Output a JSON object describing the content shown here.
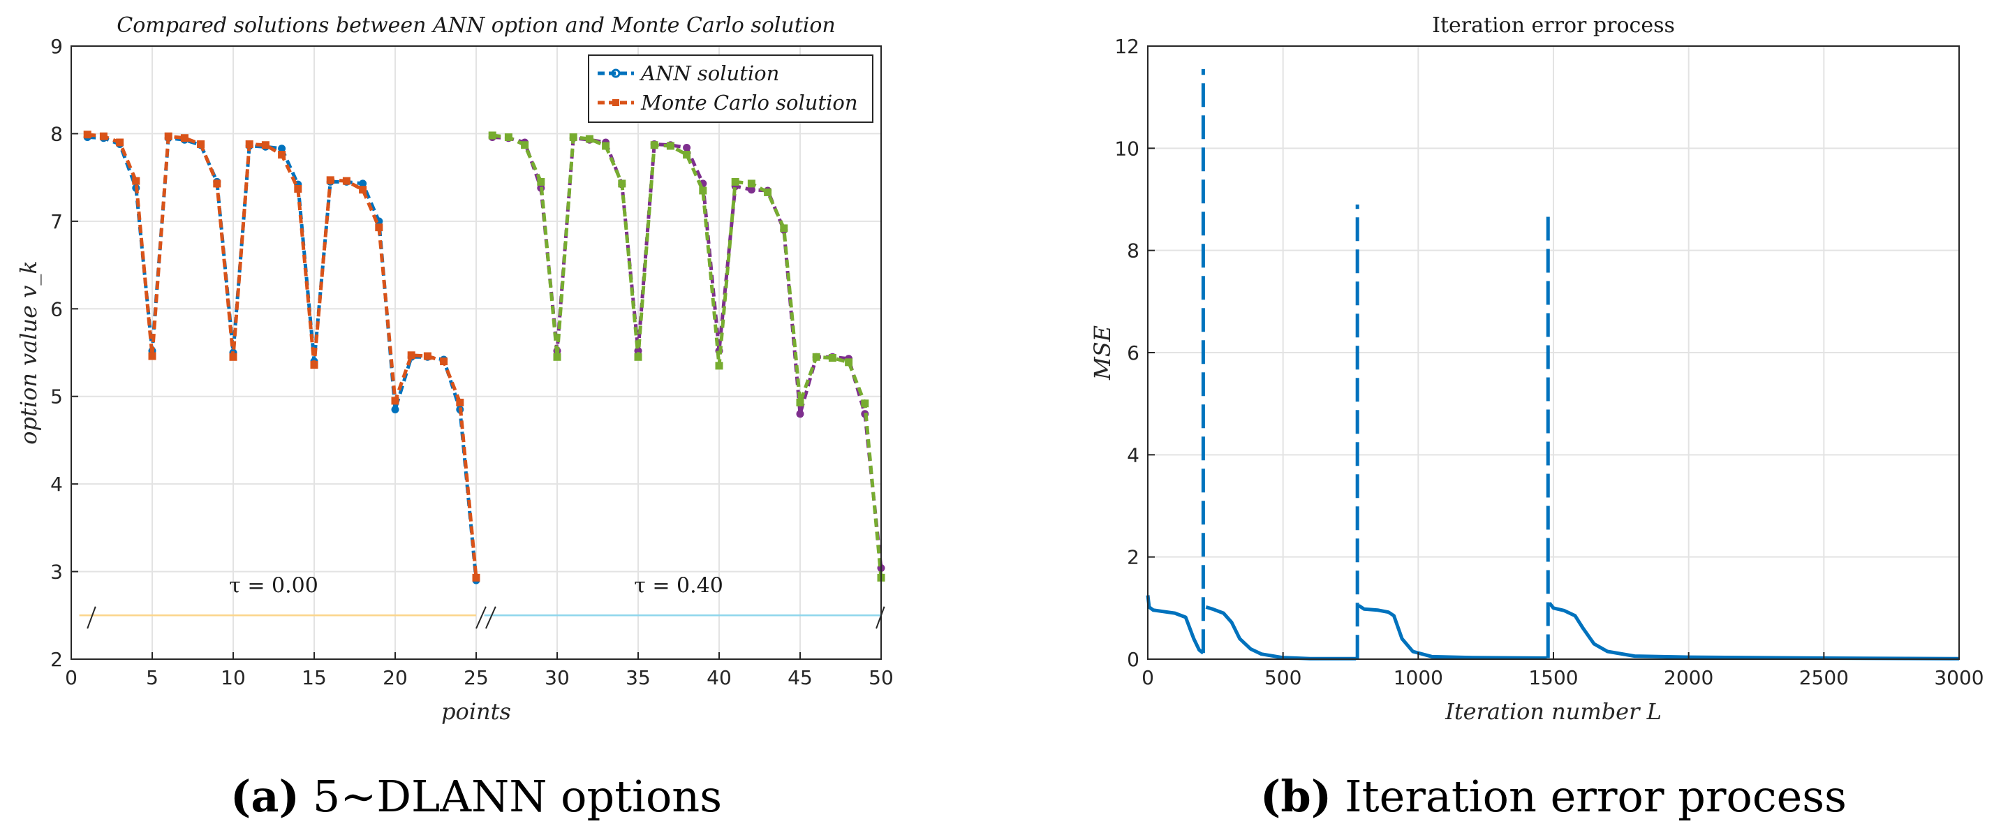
{
  "chart_data": [
    {
      "id": "a",
      "type": "line",
      "title": "Compared solutions between ANN option and Monte Carlo solution",
      "xlabel": "points",
      "ylabel": "option value v_k",
      "xlim": [
        0,
        50
      ],
      "ylim": [
        2,
        9
      ],
      "xticks": [
        0,
        5,
        10,
        15,
        20,
        25,
        30,
        35,
        40,
        45,
        50
      ],
      "yticks": [
        2,
        3,
        4,
        5,
        6,
        7,
        8,
        9
      ],
      "grid": true,
      "legend": {
        "location": "top-right",
        "entries": [
          "ANN solution",
          "Monte Carlo solution"
        ]
      },
      "series": [
        {
          "name": "ANN solution",
          "segment": "tau=0.00",
          "color": "#0072bd",
          "marker": "circle",
          "x": [
            1,
            2,
            3,
            4,
            5,
            6,
            7,
            8,
            9,
            10,
            11,
            12,
            13,
            14,
            15,
            16,
            17,
            18,
            19,
            20,
            21,
            22,
            23,
            24,
            25
          ],
          "y": [
            7.96,
            7.95,
            7.88,
            7.38,
            5.52,
            7.95,
            7.93,
            7.87,
            7.45,
            5.5,
            7.86,
            7.85,
            7.83,
            7.42,
            5.4,
            7.45,
            7.45,
            7.43,
            7.0,
            4.85,
            5.45,
            5.45,
            5.42,
            4.85,
            2.9
          ]
        },
        {
          "name": "Monte Carlo solution",
          "segment": "tau=0.00",
          "color": "#d95319",
          "marker": "square",
          "x": [
            1,
            2,
            3,
            4,
            5,
            6,
            7,
            8,
            9,
            10,
            11,
            12,
            13,
            14,
            15,
            16,
            17,
            18,
            19,
            20,
            21,
            22,
            23,
            24,
            25
          ],
          "y": [
            7.99,
            7.97,
            7.9,
            7.46,
            5.46,
            7.97,
            7.95,
            7.88,
            7.43,
            5.45,
            7.88,
            7.87,
            7.76,
            7.37,
            5.36,
            7.47,
            7.46,
            7.36,
            6.93,
            4.95,
            5.47,
            5.46,
            5.4,
            4.93,
            2.93
          ]
        },
        {
          "name": "ANN solution",
          "segment": "tau=0.40",
          "color": "#7e2f8e",
          "marker": "circle",
          "x": [
            26,
            27,
            28,
            29,
            30,
            31,
            32,
            33,
            34,
            35,
            36,
            37,
            38,
            39,
            40,
            41,
            42,
            43,
            44,
            45,
            46,
            47,
            48,
            49,
            50
          ],
          "y": [
            7.96,
            7.95,
            7.9,
            7.38,
            5.52,
            7.95,
            7.93,
            7.9,
            7.42,
            5.52,
            7.88,
            7.87,
            7.84,
            7.43,
            5.52,
            7.4,
            7.36,
            7.35,
            6.9,
            4.8,
            5.45,
            5.45,
            5.43,
            4.8,
            3.04
          ]
        },
        {
          "name": "Monte Carlo solution",
          "segment": "tau=0.40",
          "color": "#77ac30",
          "marker": "square",
          "x": [
            26,
            27,
            28,
            29,
            30,
            31,
            32,
            33,
            34,
            35,
            36,
            37,
            38,
            39,
            40,
            41,
            42,
            43,
            44,
            45,
            46,
            47,
            48,
            49,
            50
          ],
          "y": [
            7.98,
            7.96,
            7.87,
            7.45,
            5.45,
            7.96,
            7.94,
            7.86,
            7.43,
            5.45,
            7.87,
            7.86,
            7.76,
            7.35,
            5.35,
            7.45,
            7.43,
            7.33,
            6.92,
            4.93,
            5.45,
            5.44,
            5.39,
            4.92,
            2.93
          ]
        }
      ],
      "annotations": [
        {
          "text": "τ = 0.00",
          "x": 12.5,
          "y": 2.76,
          "bracket_x": [
            0.5,
            25
          ],
          "bracket_y": 2.5,
          "color": "#fbd58a"
        },
        {
          "text": "τ = 0.40",
          "x": 37.5,
          "y": 2.76,
          "bracket_x": [
            25.5,
            50
          ],
          "bracket_y": 2.5,
          "color": "#8ed6ec"
        }
      ],
      "caption_label": "(a)",
      "caption_text": "5∼DLANN options"
    },
    {
      "id": "b",
      "type": "line",
      "title": "Iteration error process",
      "xlabel": "Iteration number L",
      "ylabel": "MSE",
      "xlim": [
        0,
        3000
      ],
      "ylim": [
        0,
        12
      ],
      "xticks": [
        0,
        500,
        1000,
        1500,
        2000,
        2500,
        3000
      ],
      "yticks": [
        0,
        2,
        4,
        6,
        8,
        10,
        12
      ],
      "grid": true,
      "series": [
        {
          "name": "MSE",
          "color": "#0072bd",
          "x": [
            0,
            5,
            20,
            60,
            100,
            140,
            170,
            190,
            205
          ],
          "y": [
            1.25,
            1.02,
            0.96,
            0.93,
            0.9,
            0.82,
            0.4,
            0.18,
            0.12
          ]
        },
        {
          "name": "MSE",
          "color": "#0072bd",
          "x": [
            215,
            240,
            280,
            310,
            340,
            380,
            420,
            500,
            600,
            770
          ],
          "y": [
            1.02,
            0.98,
            0.9,
            0.72,
            0.4,
            0.2,
            0.1,
            0.03,
            0.01,
            0.01
          ]
        },
        {
          "name": "MSE",
          "color": "#0072bd",
          "x": [
            780,
            800,
            850,
            890,
            910,
            940,
            980,
            1050,
            1200,
            1475
          ],
          "y": [
            1.05,
            0.98,
            0.96,
            0.92,
            0.85,
            0.4,
            0.15,
            0.05,
            0.03,
            0.02
          ]
        },
        {
          "name": "MSE",
          "color": "#0072bd",
          "x": [
            1485,
            1500,
            1540,
            1580,
            1610,
            1650,
            1700,
            1800,
            2000,
            2500,
            3000
          ],
          "y": [
            1.1,
            1.0,
            0.95,
            0.85,
            0.6,
            0.3,
            0.15,
            0.06,
            0.04,
            0.02,
            0.01
          ]
        },
        {
          "name": "MSE spike",
          "color": "#0072bd",
          "style": "dashed",
          "x": [
            205,
            205
          ],
          "y": [
            0.12,
            11.55
          ]
        },
        {
          "name": "MSE spike",
          "color": "#0072bd",
          "style": "dashed",
          "x": [
            775,
            775
          ],
          "y": [
            0.01,
            8.9
          ]
        },
        {
          "name": "MSE spike",
          "color": "#0072bd",
          "style": "dashed",
          "x": [
            1480,
            1480
          ],
          "y": [
            0.02,
            8.7
          ]
        }
      ],
      "caption_label": "(b)",
      "caption_text": "Iteration error process"
    }
  ]
}
